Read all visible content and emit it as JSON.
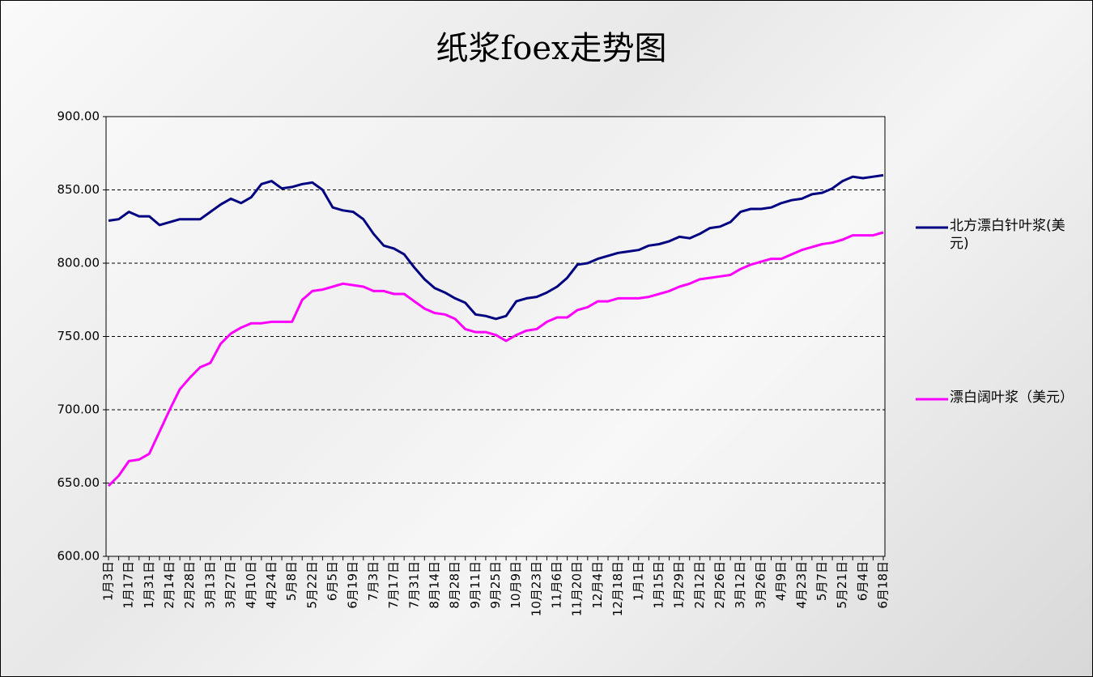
{
  "chart_data": {
    "type": "line",
    "title": "纸浆foex走势图",
    "categories": [
      "1月3日",
      null,
      "1月17日",
      null,
      "1月31日",
      null,
      "2月14日",
      null,
      "2月28日",
      null,
      "3月13日",
      null,
      "3月27日",
      null,
      "4月10日",
      null,
      "4月24日",
      null,
      "5月8日",
      null,
      "5月22日",
      null,
      "6月5日",
      null,
      "6月19日",
      null,
      "7月3日",
      null,
      "7月17日",
      null,
      "7月31日",
      null,
      "8月14日",
      null,
      "8月28日",
      null,
      "9月11日",
      null,
      "9月25日",
      null,
      "10月9日",
      null,
      "10月23日",
      null,
      "11月6日",
      null,
      "11月20日",
      null,
      "12月4日",
      null,
      "12月18日",
      null,
      "1月1日",
      null,
      "1月15日",
      null,
      "1月29日",
      null,
      "2月12日",
      null,
      "2月26日",
      null,
      "3月12日",
      null,
      "3月26日",
      null,
      "4月9日",
      null,
      "4月23日",
      null,
      "5月7日",
      null,
      "5月21日",
      null,
      "6月4日",
      null,
      "6月18日"
    ],
    "series": [
      {
        "name": "北方漂白针叶浆(美元)",
        "color": "#000080",
        "values": [
          829,
          830,
          835,
          832,
          832,
          826,
          828,
          830,
          830,
          830,
          835,
          840,
          844,
          841,
          845,
          854,
          856,
          851,
          852,
          854,
          855,
          850,
          838,
          836,
          835,
          830,
          820,
          812,
          810,
          806,
          797,
          789,
          783,
          780,
          776,
          773,
          765,
          764,
          762,
          764,
          774,
          776,
          777,
          780,
          784,
          790,
          799,
          800,
          803,
          805,
          807,
          808,
          809,
          812,
          813,
          815,
          818,
          817,
          820,
          824,
          825,
          828,
          835,
          837,
          837,
          838,
          841,
          843,
          844,
          847,
          848,
          851,
          856,
          859,
          858,
          859,
          860
        ]
      },
      {
        "name": "漂白阔叶浆（美元）",
        "color": "#ff00ff",
        "values": [
          648,
          655,
          665,
          666,
          670,
          685,
          700,
          714,
          722,
          729,
          732,
          745,
          752,
          756,
          759,
          759,
          760,
          760,
          760,
          775,
          781,
          782,
          784,
          786,
          785,
          784,
          781,
          781,
          779,
          779,
          774,
          769,
          766,
          765,
          762,
          755,
          753,
          753,
          751,
          747,
          751,
          754,
          755,
          760,
          763,
          763,
          768,
          770,
          774,
          774,
          776,
          776,
          776,
          777,
          779,
          781,
          784,
          786,
          789,
          790,
          791,
          792,
          796,
          799,
          801,
          803,
          803,
          806,
          809,
          811,
          813,
          814,
          816,
          819,
          819,
          819,
          821
        ]
      }
    ],
    "ylim": [
      600,
      900
    ],
    "yticks": [
      {
        "value": 600,
        "label": "600.00"
      },
      {
        "value": 650,
        "label": "650.00"
      },
      {
        "value": 700,
        "label": "700.00"
      },
      {
        "value": 750,
        "label": "750.00"
      },
      {
        "value": 800,
        "label": "800.00"
      },
      {
        "value": 850,
        "label": "850.00"
      },
      {
        "value": 900,
        "label": "900.00"
      }
    ],
    "grid": true,
    "legend": "right"
  }
}
